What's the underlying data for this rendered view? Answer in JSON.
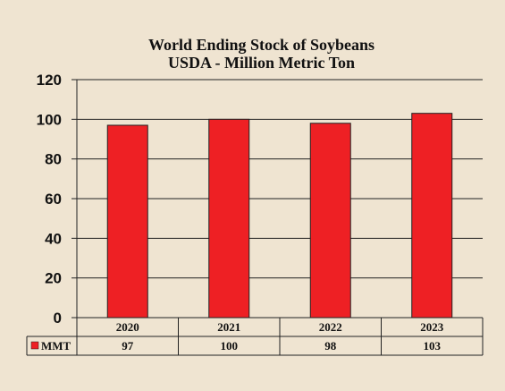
{
  "chart_data": {
    "type": "bar",
    "title": "World Ending Stock of Soybeans",
    "subtitle": "USDA - Million Metric Ton",
    "categories": [
      "2020",
      "2021",
      "2022",
      "2023"
    ],
    "series": [
      {
        "name": "MMT",
        "values": [
          97,
          100,
          98,
          103
        ],
        "color": "#ee2024"
      }
    ],
    "ylim": [
      0,
      120
    ],
    "yticks": [
      0,
      20,
      40,
      60,
      80,
      100,
      120
    ],
    "grid": true,
    "legend": "data-table",
    "xlabel": "",
    "ylabel": ""
  }
}
